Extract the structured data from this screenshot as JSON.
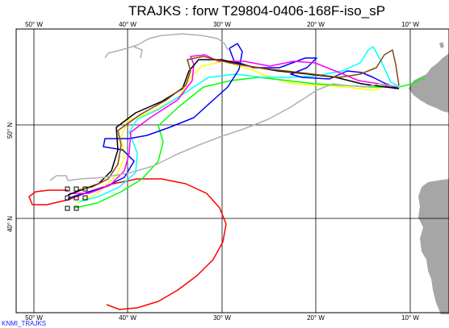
{
  "title": "TRAJKS : forw T29804-0406-168F-iso_sP",
  "credit": "KNMI_TRAJKS",
  "lon_ticks_top": [
    "50° W",
    "40° W",
    "30° W",
    "20° W",
    "10° W"
  ],
  "lon_ticks_bottom": [
    "50° W",
    "40° W",
    "30° W",
    "20° W",
    "10° W"
  ],
  "lat_ticks": [
    "50° N",
    "40° N"
  ],
  "colors": {
    "land": "#a6a6a6",
    "grid": "#000000",
    "trajectories": [
      "#ff0000",
      "#ffff00",
      "#00ff00",
      "#00ffff",
      "#0000ff",
      "#ff00ff",
      "#000000",
      "#8b4513",
      "#b0b0b0"
    ]
  }
}
